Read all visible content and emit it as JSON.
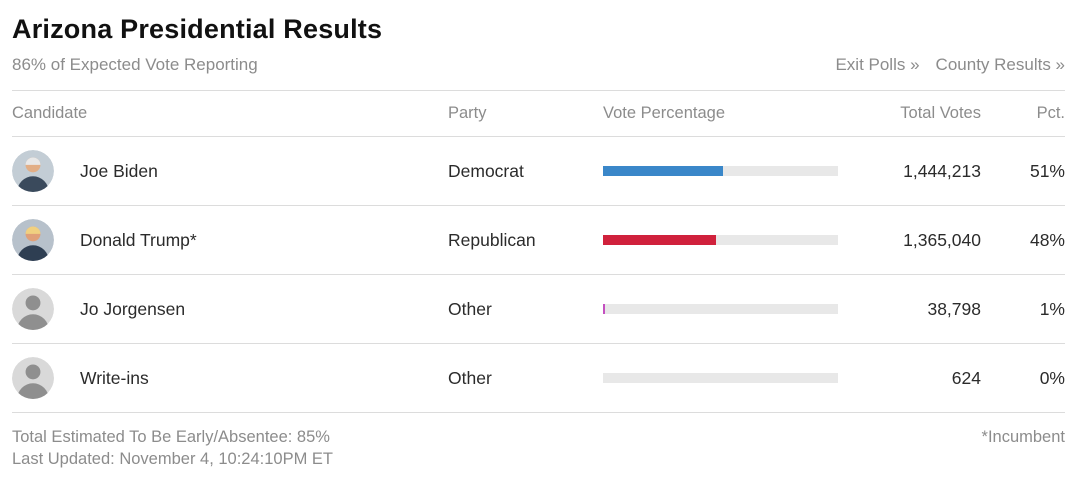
{
  "header": {
    "title": "Arizona Presidential Results",
    "reporting_status": "86% of Expected Vote Reporting",
    "exit_polls_link": "Exit Polls »",
    "county_results_link": "County Results »"
  },
  "table": {
    "columns": {
      "candidate": "Candidate",
      "party": "Party",
      "vote_percentage": "Vote Percentage",
      "total_votes": "Total Votes",
      "pct": "Pct."
    },
    "rows": [
      {
        "name": "Joe Biden",
        "party": "Democrat",
        "total_votes": "1,444,213",
        "pct": "51%",
        "bar_pct": 51,
        "bar_color": "#3a87c9",
        "avatar": "photo-biden"
      },
      {
        "name": "Donald Trump*",
        "party": "Republican",
        "total_votes": "1,365,040",
        "pct": "48%",
        "bar_pct": 48,
        "bar_color": "#d0213c",
        "avatar": "photo-trump"
      },
      {
        "name": "Jo Jorgensen",
        "party": "Other",
        "total_votes": "38,798",
        "pct": "1%",
        "bar_pct": 1,
        "bar_color": "#c450c0",
        "avatar": "silhouette"
      },
      {
        "name": "Write-ins",
        "party": "Other",
        "total_votes": "624",
        "pct": "0%",
        "bar_pct": 0,
        "bar_color": "#c450c0",
        "avatar": "silhouette"
      }
    ]
  },
  "footer": {
    "absentee_note": "Total Estimated To Be Early/Absentee: 85%",
    "last_updated": "Last Updated: November 4, 10:24:10PM ET",
    "incumbent_note": "*Incumbent"
  },
  "chart_data": {
    "type": "bar",
    "title": "Arizona Presidential Results",
    "subtitle": "86% of Expected Vote Reporting",
    "categories": [
      "Joe Biden",
      "Donald Trump*",
      "Jo Jorgensen",
      "Write-ins"
    ],
    "category_parties": [
      "Democrat",
      "Republican",
      "Other",
      "Other"
    ],
    "series": [
      {
        "name": "Vote Percentage (Pct.)",
        "values": [
          51,
          48,
          1,
          0
        ]
      },
      {
        "name": "Total Votes",
        "values": [
          1444213,
          1365040,
          38798,
          624
        ]
      }
    ],
    "xlabel": "Vote Percentage",
    "ylabel": "Candidate",
    "xlim": [
      0,
      100
    ],
    "bar_colors": [
      "#3a87c9",
      "#d0213c",
      "#c450c0",
      "#c450c0"
    ],
    "legend_position": "none",
    "grid": false,
    "annotations": [
      "Total Estimated To Be Early/Absentee: 85%",
      "Last Updated: November 4, 10:24:10PM ET",
      "*Incumbent"
    ]
  }
}
